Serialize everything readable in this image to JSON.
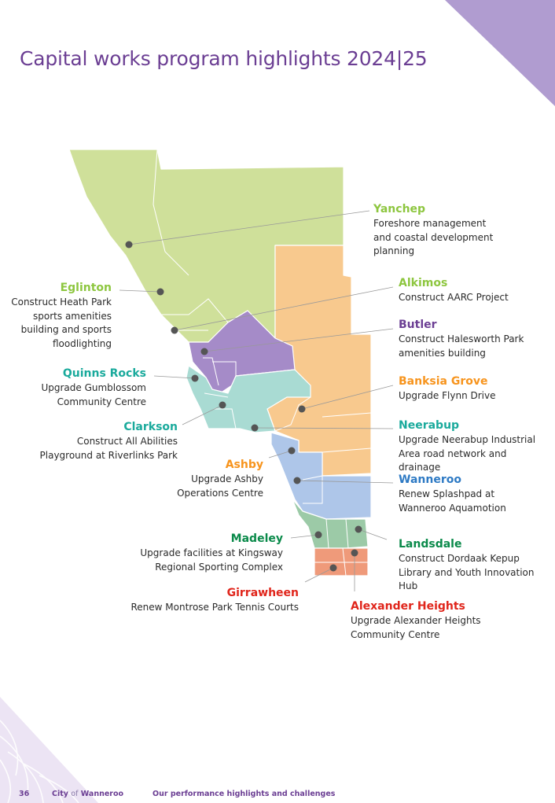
{
  "page_title": "Capital works program highlights 2024|25",
  "colors": {
    "title": "#6b3e93",
    "north_green": "#cfe09a",
    "orange": "#f8c98e",
    "purple": "#a58bc8",
    "teal": "#a9dbd3",
    "blue": "#aec6e9",
    "green": "#9ccaa7",
    "salmon": "#ef9a7a",
    "marker": "#555555"
  },
  "locations": [
    {
      "suburb": "Yanchep",
      "project": "Foreshore management and coastal development planning",
      "color": "#8dc63f"
    },
    {
      "suburb": "Alkimos",
      "project": "Construct AARC Project",
      "color": "#8dc63f"
    },
    {
      "suburb": "Eglinton",
      "project": "Construct Heath Park sports amenities building and sports floodlighting",
      "color": "#8dc63f"
    },
    {
      "suburb": "Butler",
      "project": "Construct Halesworth Park amenities building",
      "color": "#6b3e93"
    },
    {
      "suburb": "Quinns Rocks",
      "project": "Upgrade Gumblossom Community Centre",
      "color": "#1aaa9c"
    },
    {
      "suburb": "Banksia Grove",
      "project": "Upgrade Flynn Drive",
      "color": "#f7941d"
    },
    {
      "suburb": "Clarkson",
      "project": "Construct All Abilities Playground at Riverlinks Park",
      "color": "#1aaa9c"
    },
    {
      "suburb": "Neerabup",
      "project": "Upgrade Neerabup Industrial Area road network and drainage",
      "color": "#1aaa9c"
    },
    {
      "suburb": "Ashby",
      "project": "Upgrade Ashby Operations Centre",
      "color": "#f7941d"
    },
    {
      "suburb": "Wanneroo",
      "project": "Renew Splashpad at Wanneroo Aquamotion",
      "color": "#2e7ac4"
    },
    {
      "suburb": "Madeley",
      "project": "Upgrade facilities at Kingsway Regional Sporting Complex",
      "color": "#0a8a4a"
    },
    {
      "suburb": "Landsdale",
      "project": "Construct Dordaak Kepup Library and Youth Innovation Hub",
      "color": "#0a8a4a"
    },
    {
      "suburb": "Girrawheen",
      "project": "Renew Montrose Park Tennis Courts",
      "color": "#e0251b"
    },
    {
      "suburb": "Alexander Heights",
      "project": "Upgrade Alexander Heights Community Centre",
      "color": "#e0251b"
    }
  ],
  "footer": {
    "page_number": "36",
    "city_prefix": "City",
    "city_of": "of",
    "city_name": "Wanneroo",
    "section": "Our performance highlights and challenges"
  }
}
